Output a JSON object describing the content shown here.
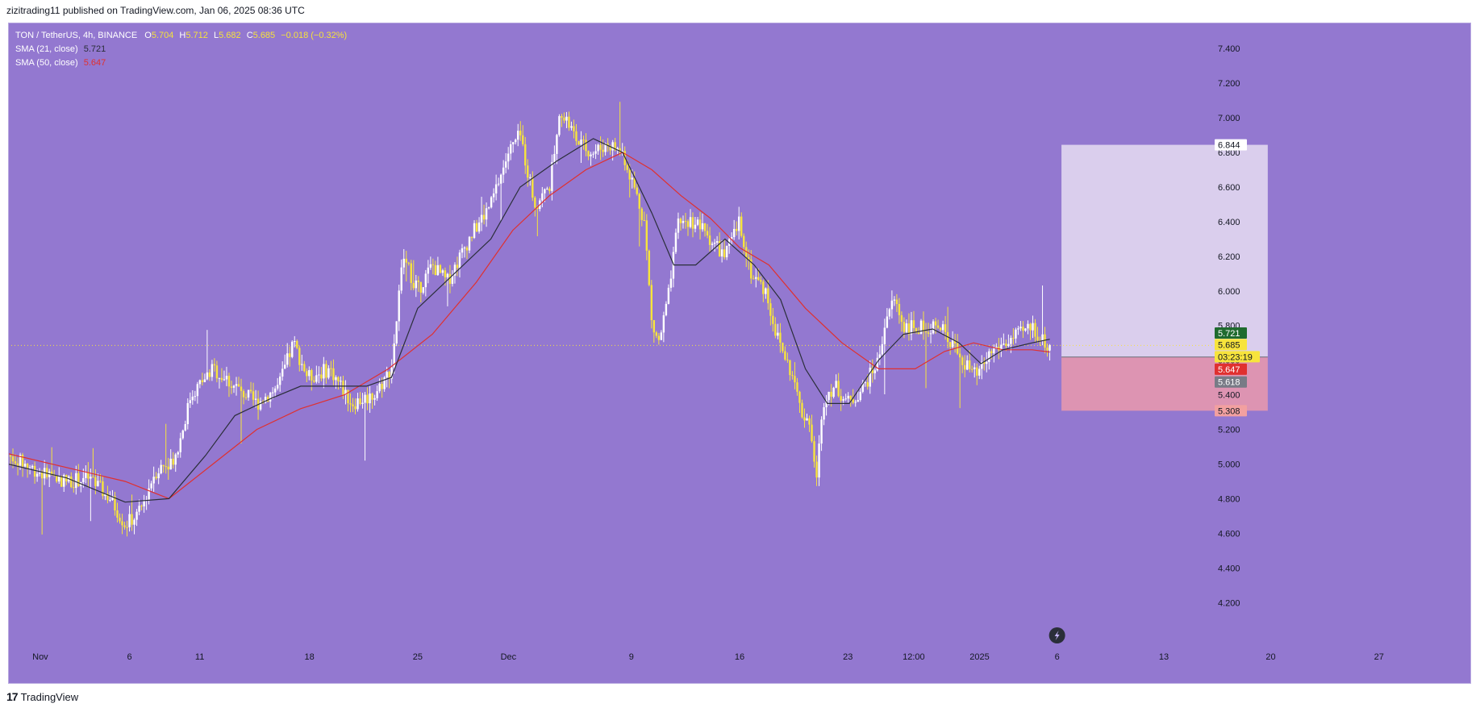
{
  "header": {
    "published": "zizitrading11 published on TradingView.com, Jan 06, 2025 08:36 UTC"
  },
  "legend": {
    "symbol": "TON / TetherUS, 4h, BINANCE",
    "o_label": "O",
    "o_value": "5.704",
    "h_label": "H",
    "h_value": "5.712",
    "l_label": "L",
    "l_value": "5.682",
    "c_label": "C",
    "c_value": "5.685",
    "change": "−0.018 (−0.32%)",
    "sma21_label": "SMA (21, close)",
    "sma21_value": "5.721",
    "sma50_label": "SMA (50, close)",
    "sma50_value": "5.647"
  },
  "footer": {
    "brand": "TradingView"
  },
  "colors": {
    "background": "#9378d0",
    "candle_up": "#ffffff",
    "candle_down": "#f7e43c",
    "sma21": "#2a2e39",
    "sma50": "#e0302f",
    "target_zone": "#ddd3ee",
    "stop_zone": "#e096b0"
  },
  "chart_data": {
    "type": "candlestick",
    "symbol": "TON / TetherUS",
    "timeframe": "4h",
    "exchange": "BINANCE",
    "ylim": [
      4.15,
      7.55
    ],
    "y_ticks": [
      "7.400",
      "7.200",
      "7.000",
      "6.800",
      "6.600",
      "6.400",
      "6.200",
      "6.000",
      "5.800",
      "5.600",
      "5.400",
      "5.200",
      "5.000",
      "4.800",
      "4.600",
      "4.400",
      "4.200"
    ],
    "x_ticks": [
      {
        "label": "Nov",
        "x": 0.022
      },
      {
        "label": "6",
        "x": 0.083
      },
      {
        "label": "11",
        "x": 0.131
      },
      {
        "label": "18",
        "x": 0.206
      },
      {
        "label": "25",
        "x": 0.28
      },
      {
        "label": "Dec",
        "x": 0.342
      },
      {
        "label": "9",
        "x": 0.426
      },
      {
        "label": "16",
        "x": 0.5
      },
      {
        "label": "23",
        "x": 0.574
      },
      {
        "label": "12:00",
        "x": 0.619
      },
      {
        "label": "2025",
        "x": 0.664
      },
      {
        "label": "6",
        "x": 0.717
      },
      {
        "label": "13",
        "x": 0.79
      },
      {
        "label": "20",
        "x": 0.863
      },
      {
        "label": "27",
        "x": 0.937
      }
    ],
    "price_path": [
      [
        0.0,
        5.05
      ],
      [
        0.02,
        4.96
      ],
      [
        0.04,
        4.9
      ],
      [
        0.055,
        4.92
      ],
      [
        0.07,
        4.8
      ],
      [
        0.08,
        4.65
      ],
      [
        0.09,
        4.72
      ],
      [
        0.1,
        4.95
      ],
      [
        0.115,
        5.05
      ],
      [
        0.125,
        5.4
      ],
      [
        0.14,
        5.55
      ],
      [
        0.155,
        5.45
      ],
      [
        0.17,
        5.35
      ],
      [
        0.185,
        5.45
      ],
      [
        0.195,
        5.7
      ],
      [
        0.205,
        5.5
      ],
      [
        0.22,
        5.55
      ],
      [
        0.235,
        5.35
      ],
      [
        0.25,
        5.4
      ],
      [
        0.262,
        5.55
      ],
      [
        0.27,
        6.2
      ],
      [
        0.28,
        6.0
      ],
      [
        0.29,
        6.15
      ],
      [
        0.3,
        6.05
      ],
      [
        0.315,
        6.3
      ],
      [
        0.33,
        6.5
      ],
      [
        0.342,
        6.8
      ],
      [
        0.35,
        6.9
      ],
      [
        0.36,
        6.5
      ],
      [
        0.37,
        6.6
      ],
      [
        0.378,
        7.05
      ],
      [
        0.39,
        6.85
      ],
      [
        0.4,
        6.8
      ],
      [
        0.41,
        6.85
      ],
      [
        0.42,
        6.8
      ],
      [
        0.428,
        6.6
      ],
      [
        0.435,
        6.4
      ],
      [
        0.44,
        5.8
      ],
      [
        0.445,
        5.7
      ],
      [
        0.452,
        6.0
      ],
      [
        0.458,
        6.4
      ],
      [
        0.47,
        6.4
      ],
      [
        0.48,
        6.3
      ],
      [
        0.49,
        6.2
      ],
      [
        0.5,
        6.4
      ],
      [
        0.508,
        6.1
      ],
      [
        0.518,
        6.0
      ],
      [
        0.525,
        5.75
      ],
      [
        0.532,
        5.6
      ],
      [
        0.538,
        5.45
      ],
      [
        0.542,
        5.3
      ],
      [
        0.548,
        5.25
      ],
      [
        0.552,
        4.9
      ],
      [
        0.558,
        5.4
      ],
      [
        0.565,
        5.45
      ],
      [
        0.575,
        5.35
      ],
      [
        0.585,
        5.45
      ],
      [
        0.595,
        5.6
      ],
      [
        0.6,
        5.85
      ],
      [
        0.606,
        5.95
      ],
      [
        0.612,
        5.8
      ],
      [
        0.622,
        5.78
      ],
      [
        0.632,
        5.8
      ],
      [
        0.642,
        5.75
      ],
      [
        0.652,
        5.6
      ],
      [
        0.662,
        5.5
      ],
      [
        0.672,
        5.65
      ],
      [
        0.682,
        5.7
      ],
      [
        0.692,
        5.75
      ],
      [
        0.7,
        5.8
      ],
      [
        0.706,
        5.72
      ],
      [
        0.712,
        5.685
      ]
    ],
    "sma21_path": [
      [
        0.0,
        5.0
      ],
      [
        0.04,
        4.92
      ],
      [
        0.08,
        4.78
      ],
      [
        0.11,
        4.8
      ],
      [
        0.135,
        5.05
      ],
      [
        0.155,
        5.28
      ],
      [
        0.18,
        5.38
      ],
      [
        0.2,
        5.45
      ],
      [
        0.22,
        5.45
      ],
      [
        0.245,
        5.45
      ],
      [
        0.262,
        5.5
      ],
      [
        0.28,
        5.9
      ],
      [
        0.305,
        6.1
      ],
      [
        0.33,
        6.3
      ],
      [
        0.35,
        6.6
      ],
      [
        0.375,
        6.75
      ],
      [
        0.4,
        6.88
      ],
      [
        0.42,
        6.8
      ],
      [
        0.44,
        6.45
      ],
      [
        0.455,
        6.15
      ],
      [
        0.47,
        6.15
      ],
      [
        0.49,
        6.3
      ],
      [
        0.51,
        6.15
      ],
      [
        0.528,
        5.95
      ],
      [
        0.545,
        5.55
      ],
      [
        0.56,
        5.35
      ],
      [
        0.575,
        5.35
      ],
      [
        0.595,
        5.6
      ],
      [
        0.612,
        5.75
      ],
      [
        0.632,
        5.78
      ],
      [
        0.65,
        5.7
      ],
      [
        0.665,
        5.58
      ],
      [
        0.68,
        5.66
      ],
      [
        0.7,
        5.7
      ],
      [
        0.712,
        5.721
      ]
    ],
    "sma50_path": [
      [
        0.0,
        5.06
      ],
      [
        0.04,
        4.98
      ],
      [
        0.08,
        4.9
      ],
      [
        0.11,
        4.8
      ],
      [
        0.14,
        5.0
      ],
      [
        0.17,
        5.2
      ],
      [
        0.2,
        5.32
      ],
      [
        0.23,
        5.4
      ],
      [
        0.26,
        5.55
      ],
      [
        0.29,
        5.75
      ],
      [
        0.32,
        6.05
      ],
      [
        0.345,
        6.35
      ],
      [
        0.37,
        6.55
      ],
      [
        0.395,
        6.7
      ],
      [
        0.42,
        6.8
      ],
      [
        0.44,
        6.7
      ],
      [
        0.46,
        6.55
      ],
      [
        0.48,
        6.42
      ],
      [
        0.5,
        6.25
      ],
      [
        0.52,
        6.15
      ],
      [
        0.545,
        5.9
      ],
      [
        0.57,
        5.7
      ],
      [
        0.595,
        5.55
      ],
      [
        0.62,
        5.55
      ],
      [
        0.64,
        5.65
      ],
      [
        0.66,
        5.7
      ],
      [
        0.68,
        5.66
      ],
      [
        0.7,
        5.66
      ],
      [
        0.712,
        5.647
      ]
    ],
    "position_tool": {
      "entry": 5.618,
      "target": 6.844,
      "stop": 5.308,
      "x_start": 0.72,
      "x_end": 0.861
    },
    "last_price_line": 5.685,
    "price_tags": [
      {
        "label": "6.844",
        "value": 6.844,
        "bg": "#ffffff",
        "fg": "#131722"
      },
      {
        "label": "5.721",
        "value": 5.757,
        "bg": "#1f6b2e",
        "fg": "#ffffff"
      },
      {
        "label": "5.685",
        "value": 5.69,
        "bg": "#f7e43c",
        "fg": "#131722"
      },
      {
        "label": "03:23:19",
        "value": 5.62,
        "bg": "#f7e43c",
        "fg": "#131722"
      },
      {
        "label": "5.647",
        "value": 5.548,
        "bg": "#e0302f",
        "fg": "#ffffff"
      },
      {
        "label": "5.618",
        "value": 5.474,
        "bg": "#787b86",
        "fg": "#ffffff"
      },
      {
        "label": "5.308",
        "value": 5.308,
        "bg": "#f2a0a0",
        "fg": "#131722"
      }
    ]
  }
}
